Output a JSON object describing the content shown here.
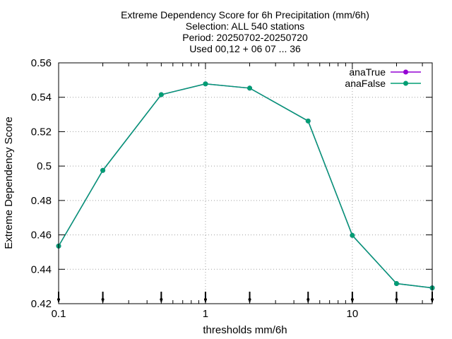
{
  "chart_data": {
    "type": "line",
    "title_lines": [
      "Extreme Dependency Score  for 6h Precipitation (mm/6h)",
      "Selection: ALL    540 stations",
      "Period: 20250702-20250720",
      "Used 00,12 + 06 07 ... 36"
    ],
    "xlabel": "thresholds mm/6h",
    "ylabel": "Extreme Dependency Score",
    "x_scale": "log",
    "xlim": [
      0.1,
      35
    ],
    "ylim": [
      0.42,
      0.56
    ],
    "x_ticks": [
      {
        "value": 0.1,
        "label": "0.1"
      },
      {
        "value": 1,
        "label": "1"
      },
      {
        "value": 10,
        "label": "10"
      }
    ],
    "y_ticks": [
      {
        "value": 0.42,
        "label": "0.42"
      },
      {
        "value": 0.44,
        "label": "0.44"
      },
      {
        "value": 0.46,
        "label": "0.46"
      },
      {
        "value": 0.48,
        "label": "0.48"
      },
      {
        "value": 0.5,
        "label": "0.5"
      },
      {
        "value": 0.52,
        "label": "0.52"
      },
      {
        "value": 0.54,
        "label": "0.54"
      },
      {
        "value": 0.56,
        "label": "0.56"
      }
    ],
    "grid": true,
    "legend_position": "top-right",
    "series": [
      {
        "name": "anaTrue",
        "color": "#9400d3",
        "x": [
          0.1,
          0.2,
          0.5,
          1,
          2,
          5,
          10,
          20,
          35
        ],
        "y": [
          0.4535,
          0.4975,
          0.5415,
          0.5478,
          0.5453,
          0.5262,
          0.4597,
          0.4317,
          0.4292
        ]
      },
      {
        "name": "anaFalse",
        "color": "#009e73",
        "x": [
          0.1,
          0.2,
          0.5,
          1,
          2,
          5,
          10,
          20,
          35
        ],
        "y": [
          0.4535,
          0.4975,
          0.5415,
          0.5478,
          0.5453,
          0.5262,
          0.4597,
          0.4317,
          0.4292
        ]
      }
    ],
    "observation_markers_x": [
      0.1,
      0.2,
      0.5,
      1,
      2,
      5,
      10,
      20,
      35
    ]
  }
}
